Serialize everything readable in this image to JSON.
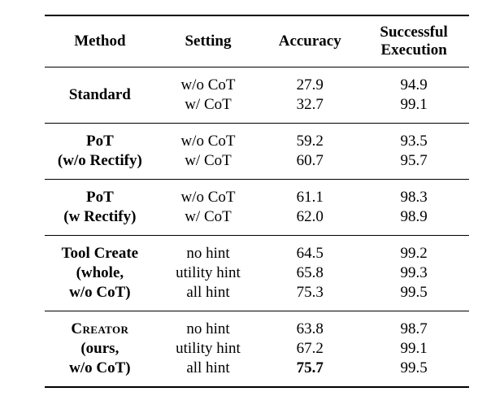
{
  "table": {
    "headers": [
      "Method",
      "Setting",
      "Accuracy",
      "Successful Execution"
    ],
    "groups": [
      {
        "method_lines": [
          "Standard"
        ],
        "rows": [
          {
            "setting": "w/o CoT",
            "accuracy": "27.9",
            "execution": "94.9"
          },
          {
            "setting": "w/ CoT",
            "accuracy": "32.7",
            "execution": "99.1"
          }
        ]
      },
      {
        "method_lines": [
          "PoT",
          "(w/o Rectify)"
        ],
        "rows": [
          {
            "setting": "w/o CoT",
            "accuracy": "59.2",
            "execution": "93.5"
          },
          {
            "setting": "w/ CoT",
            "accuracy": "60.7",
            "execution": "95.7"
          }
        ]
      },
      {
        "method_lines": [
          "PoT",
          "(w Rectify)"
        ],
        "rows": [
          {
            "setting": "w/o CoT",
            "accuracy": "61.1",
            "execution": "98.3"
          },
          {
            "setting": "w/ CoT",
            "accuracy": "62.0",
            "execution": "98.9"
          }
        ]
      },
      {
        "method_lines": [
          "Tool Create",
          "(whole,",
          "w/o CoT)"
        ],
        "rows": [
          {
            "setting": "no hint",
            "accuracy": "64.5",
            "execution": "99.2"
          },
          {
            "setting": "utility hint",
            "accuracy": "65.8",
            "execution": "99.3"
          },
          {
            "setting": "all hint",
            "accuracy": "75.3",
            "execution": "99.5"
          }
        ]
      },
      {
        "method_lines": [
          "Creator",
          "(ours,",
          "w/o CoT)"
        ],
        "rows": [
          {
            "setting": "no hint",
            "accuracy": "63.8",
            "execution": "98.7"
          },
          {
            "setting": "utility hint",
            "accuracy": "67.2",
            "execution": "99.1"
          },
          {
            "setting": "all hint",
            "accuracy": "75.7",
            "execution": "99.5"
          }
        ]
      }
    ]
  }
}
